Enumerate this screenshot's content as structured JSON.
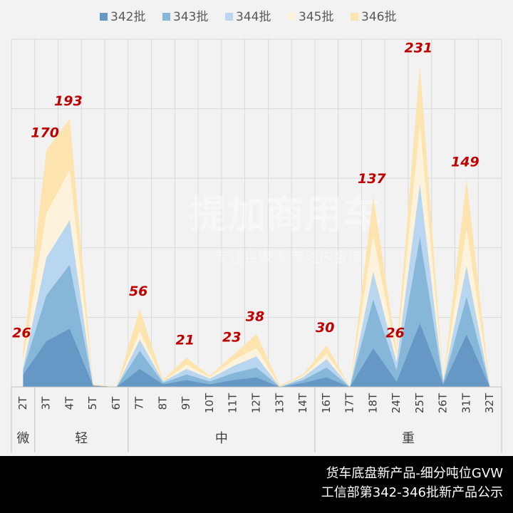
{
  "chart_data": {
    "type": "stacked-area",
    "categories": [
      "2T",
      "3T",
      "4T",
      "5T",
      "6T",
      "7T",
      "8T",
      "9T",
      "10T",
      "11T",
      "12T",
      "13T",
      "14T",
      "16T",
      "17T",
      "18T",
      "24T",
      "25T",
      "26T",
      "31T",
      "32T"
    ],
    "series": [
      {
        "name": "342批",
        "color": "#6698c6",
        "values": [
          9,
          33,
          42,
          1,
          0,
          13,
          2,
          5,
          2,
          5,
          7,
          0,
          3,
          7,
          0,
          28,
          4,
          46,
          2,
          38,
          0
        ]
      },
      {
        "name": "343批",
        "color": "#86b6d8",
        "values": [
          3,
          33,
          46,
          0,
          0,
          13,
          1,
          4,
          2,
          5,
          7,
          0,
          2,
          7,
          0,
          35,
          8,
          62,
          1,
          27,
          0
        ]
      },
      {
        "name": "344批",
        "color": "#b9d6f0",
        "values": [
          2,
          27,
          32,
          0,
          0,
          8,
          1,
          4,
          2,
          5,
          8,
          0,
          2,
          6,
          0,
          20,
          6,
          38,
          1,
          22,
          0
        ]
      },
      {
        "name": "345批",
        "color": "#fdf3dc",
        "values": [
          5,
          32,
          36,
          0,
          0,
          6,
          0,
          3,
          1,
          4,
          6,
          0,
          1,
          4,
          0,
          26,
          4,
          43,
          0,
          27,
          0
        ]
      },
      {
        "name": "346批",
        "color": "#fde3ad",
        "values": [
          7,
          45,
          37,
          1,
          0,
          16,
          1,
          5,
          1,
          4,
          10,
          1,
          1,
          6,
          0,
          28,
          4,
          42,
          1,
          35,
          0
        ]
      }
    ],
    "total_labels": [
      26,
      170,
      193,
      null,
      null,
      56,
      null,
      21,
      null,
      23,
      38,
      null,
      null,
      30,
      null,
      137,
      26,
      231,
      null,
      149,
      null
    ],
    "groups": [
      {
        "label": "微",
        "count": 1
      },
      {
        "label": "轻",
        "count": 4
      },
      {
        "label": "中",
        "count": 8
      },
      {
        "label": "重",
        "count": 8
      }
    ],
    "ylim": [
      0,
      250
    ],
    "yticks": [
      0,
      50,
      100,
      150,
      200,
      250
    ],
    "grid": true,
    "watermark": {
      "title": "提加商用车",
      "subtitle": "专注自媒体·专注内容传播"
    },
    "footer": [
      "货车底盘新产品-细分吨位GVW",
      "工信部第342-346批新产品公示"
    ]
  }
}
